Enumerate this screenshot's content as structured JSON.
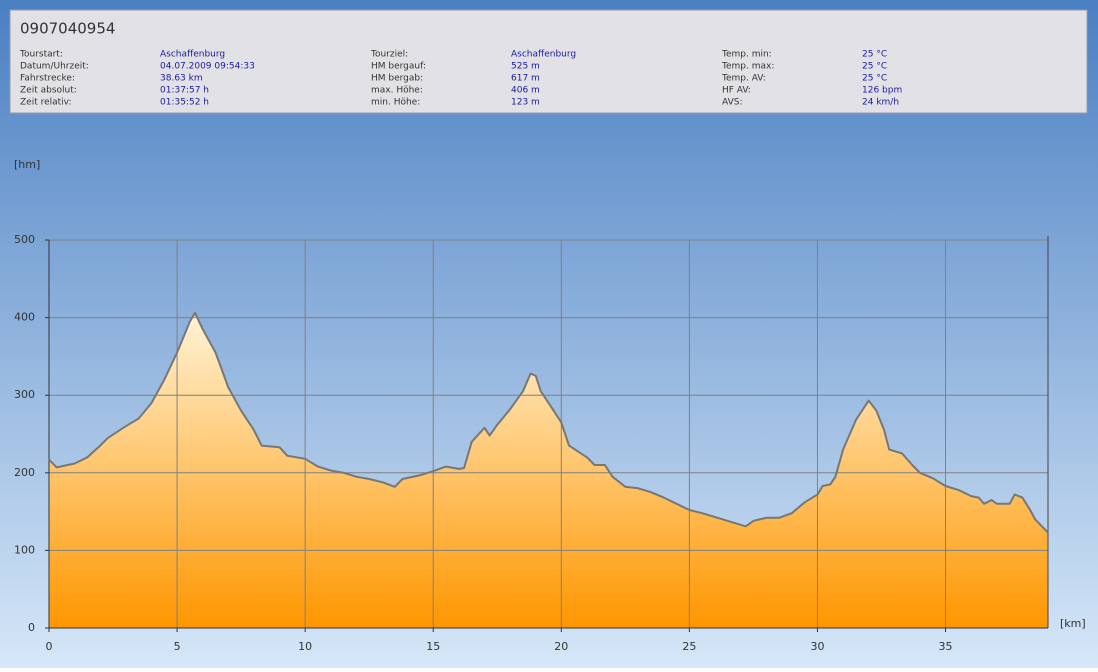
{
  "info": {
    "title": "0907040954",
    "columns": [
      [
        {
          "label": "Tourstart:",
          "value": "Aschaffenburg"
        },
        {
          "label": "Datum/Uhrzeit:",
          "value": "04.07.2009 09:54:33"
        },
        {
          "label": "Fahrstrecke:",
          "value": "38.63 km"
        },
        {
          "label": "Zeit absolut:",
          "value": "01:37:57 h"
        },
        {
          "label": "Zeit relativ:",
          "value": "01:35:52 h"
        }
      ],
      [
        {
          "label": "Tourziel:",
          "value": "Aschaffenburg"
        },
        {
          "label": "HM bergauf:",
          "value": "525 m"
        },
        {
          "label": "HM bergab:",
          "value": "617 m"
        },
        {
          "label": "max. Höhe:",
          "value": "406 m"
        },
        {
          "label": "min. Höhe:",
          "value": "123 m"
        }
      ],
      [
        {
          "label": "Temp. min:",
          "value": "25 °C"
        },
        {
          "label": "Temp. max:",
          "value": "25 °C"
        },
        {
          "label": "Temp. AV:",
          "value": "25 °C"
        },
        {
          "label": "HF AV:",
          "value": "126 bpm"
        },
        {
          "label": "AVS:",
          "value": "24 km/h"
        }
      ]
    ]
  },
  "chart_data": {
    "type": "area",
    "y_label": "[hm]",
    "x_label": "[km]",
    "x": [
      0,
      0.3,
      1,
      1.5,
      2,
      2.3,
      3,
      3.5,
      4,
      4.5,
      5,
      5.5,
      5.7,
      6,
      6.5,
      7,
      7.5,
      8,
      8.3,
      9,
      9.3,
      10,
      10.5,
      11,
      11.5,
      12,
      12.5,
      13,
      13.5,
      13.8,
      14.5,
      15,
      15.5,
      16,
      16.2,
      16.5,
      17,
      17.2,
      17.5,
      18,
      18.5,
      18.8,
      19,
      19.2,
      19.6,
      20,
      20.3,
      21,
      21.3,
      21.7,
      22,
      22.5,
      23,
      23.5,
      24,
      24.5,
      25,
      25.5,
      26,
      26.5,
      27,
      27.2,
      27.5,
      28,
      28.5,
      29,
      29.5,
      30,
      30.2,
      30.5,
      30.7,
      31,
      31.5,
      32,
      32.3,
      32.6,
      32.8,
      33.3,
      33.7,
      34,
      34.5,
      35,
      35.5,
      36,
      36.3,
      36.5,
      36.8,
      37,
      37.5,
      37.7,
      38,
      38.3,
      38.5,
      39
    ],
    "values": [
      217,
      207,
      212,
      220,
      235,
      245,
      260,
      270,
      290,
      320,
      355,
      395,
      406,
      385,
      355,
      310,
      280,
      255,
      235,
      233,
      222,
      218,
      208,
      203,
      200,
      195,
      192,
      188,
      182,
      192,
      197,
      202,
      208,
      205,
      206,
      240,
      258,
      248,
      262,
      282,
      305,
      328,
      325,
      305,
      285,
      265,
      235,
      220,
      210,
      210,
      195,
      182,
      180,
      175,
      168,
      160,
      152,
      148,
      143,
      138,
      133,
      131,
      138,
      142,
      142,
      148,
      162,
      172,
      183,
      185,
      195,
      230,
      268,
      293,
      280,
      255,
      230,
      225,
      210,
      200,
      193,
      183,
      178,
      170,
      168,
      160,
      165,
      160,
      160,
      172,
      168,
      152,
      140,
      123
    ],
    "color": "#777777",
    "fill_top": "#fff3d6",
    "fill_bottom": "#ff9600",
    "xlim": [
      0,
      39
    ],
    "xticks": [
      0,
      5,
      10,
      15,
      20,
      25,
      30,
      35
    ],
    "ylim": [
      0,
      500
    ],
    "yticks": [
      0,
      100,
      200,
      300,
      400,
      500
    ],
    "grid": true
  }
}
